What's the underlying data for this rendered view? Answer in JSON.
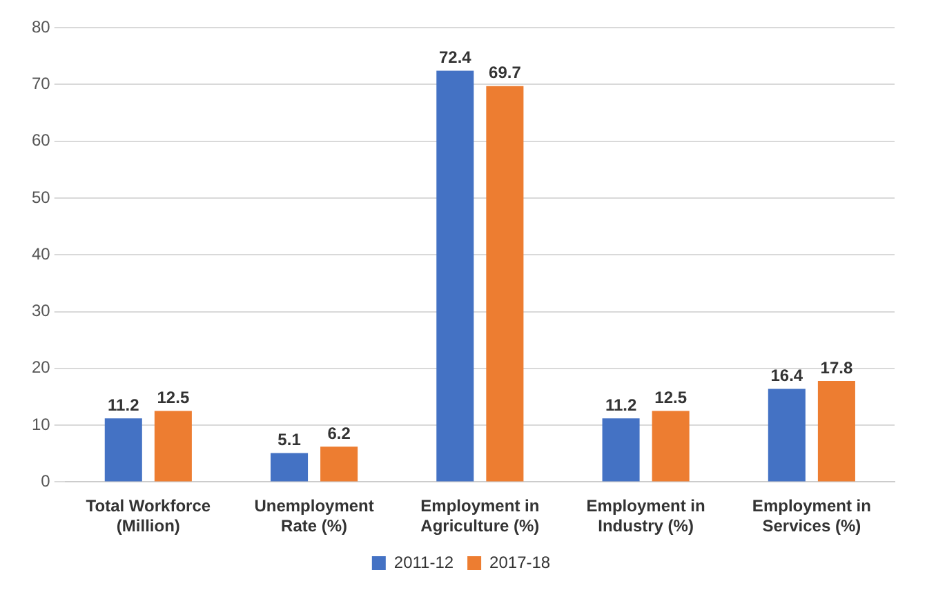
{
  "chart_data": {
    "type": "bar",
    "categories": [
      "Total Workforce (Million)",
      "Unemployment Rate (%)",
      "Employment in Agriculture (%)",
      "Employment in Industry (%)",
      "Employment in Services (%)"
    ],
    "series": [
      {
        "name": "2011-12",
        "color": "#4472c4",
        "values": [
          11.2,
          5.1,
          72.4,
          11.2,
          16.4
        ]
      },
      {
        "name": "2017-18",
        "color": "#ed7d31",
        "values": [
          12.5,
          6.2,
          69.7,
          12.5,
          17.8
        ]
      }
    ],
    "ylim": [
      0,
      80
    ],
    "yticks": [
      0,
      10,
      20,
      30,
      40,
      50,
      60,
      70,
      80
    ],
    "grid": "y",
    "legend": "bottom",
    "data_labels": true
  }
}
